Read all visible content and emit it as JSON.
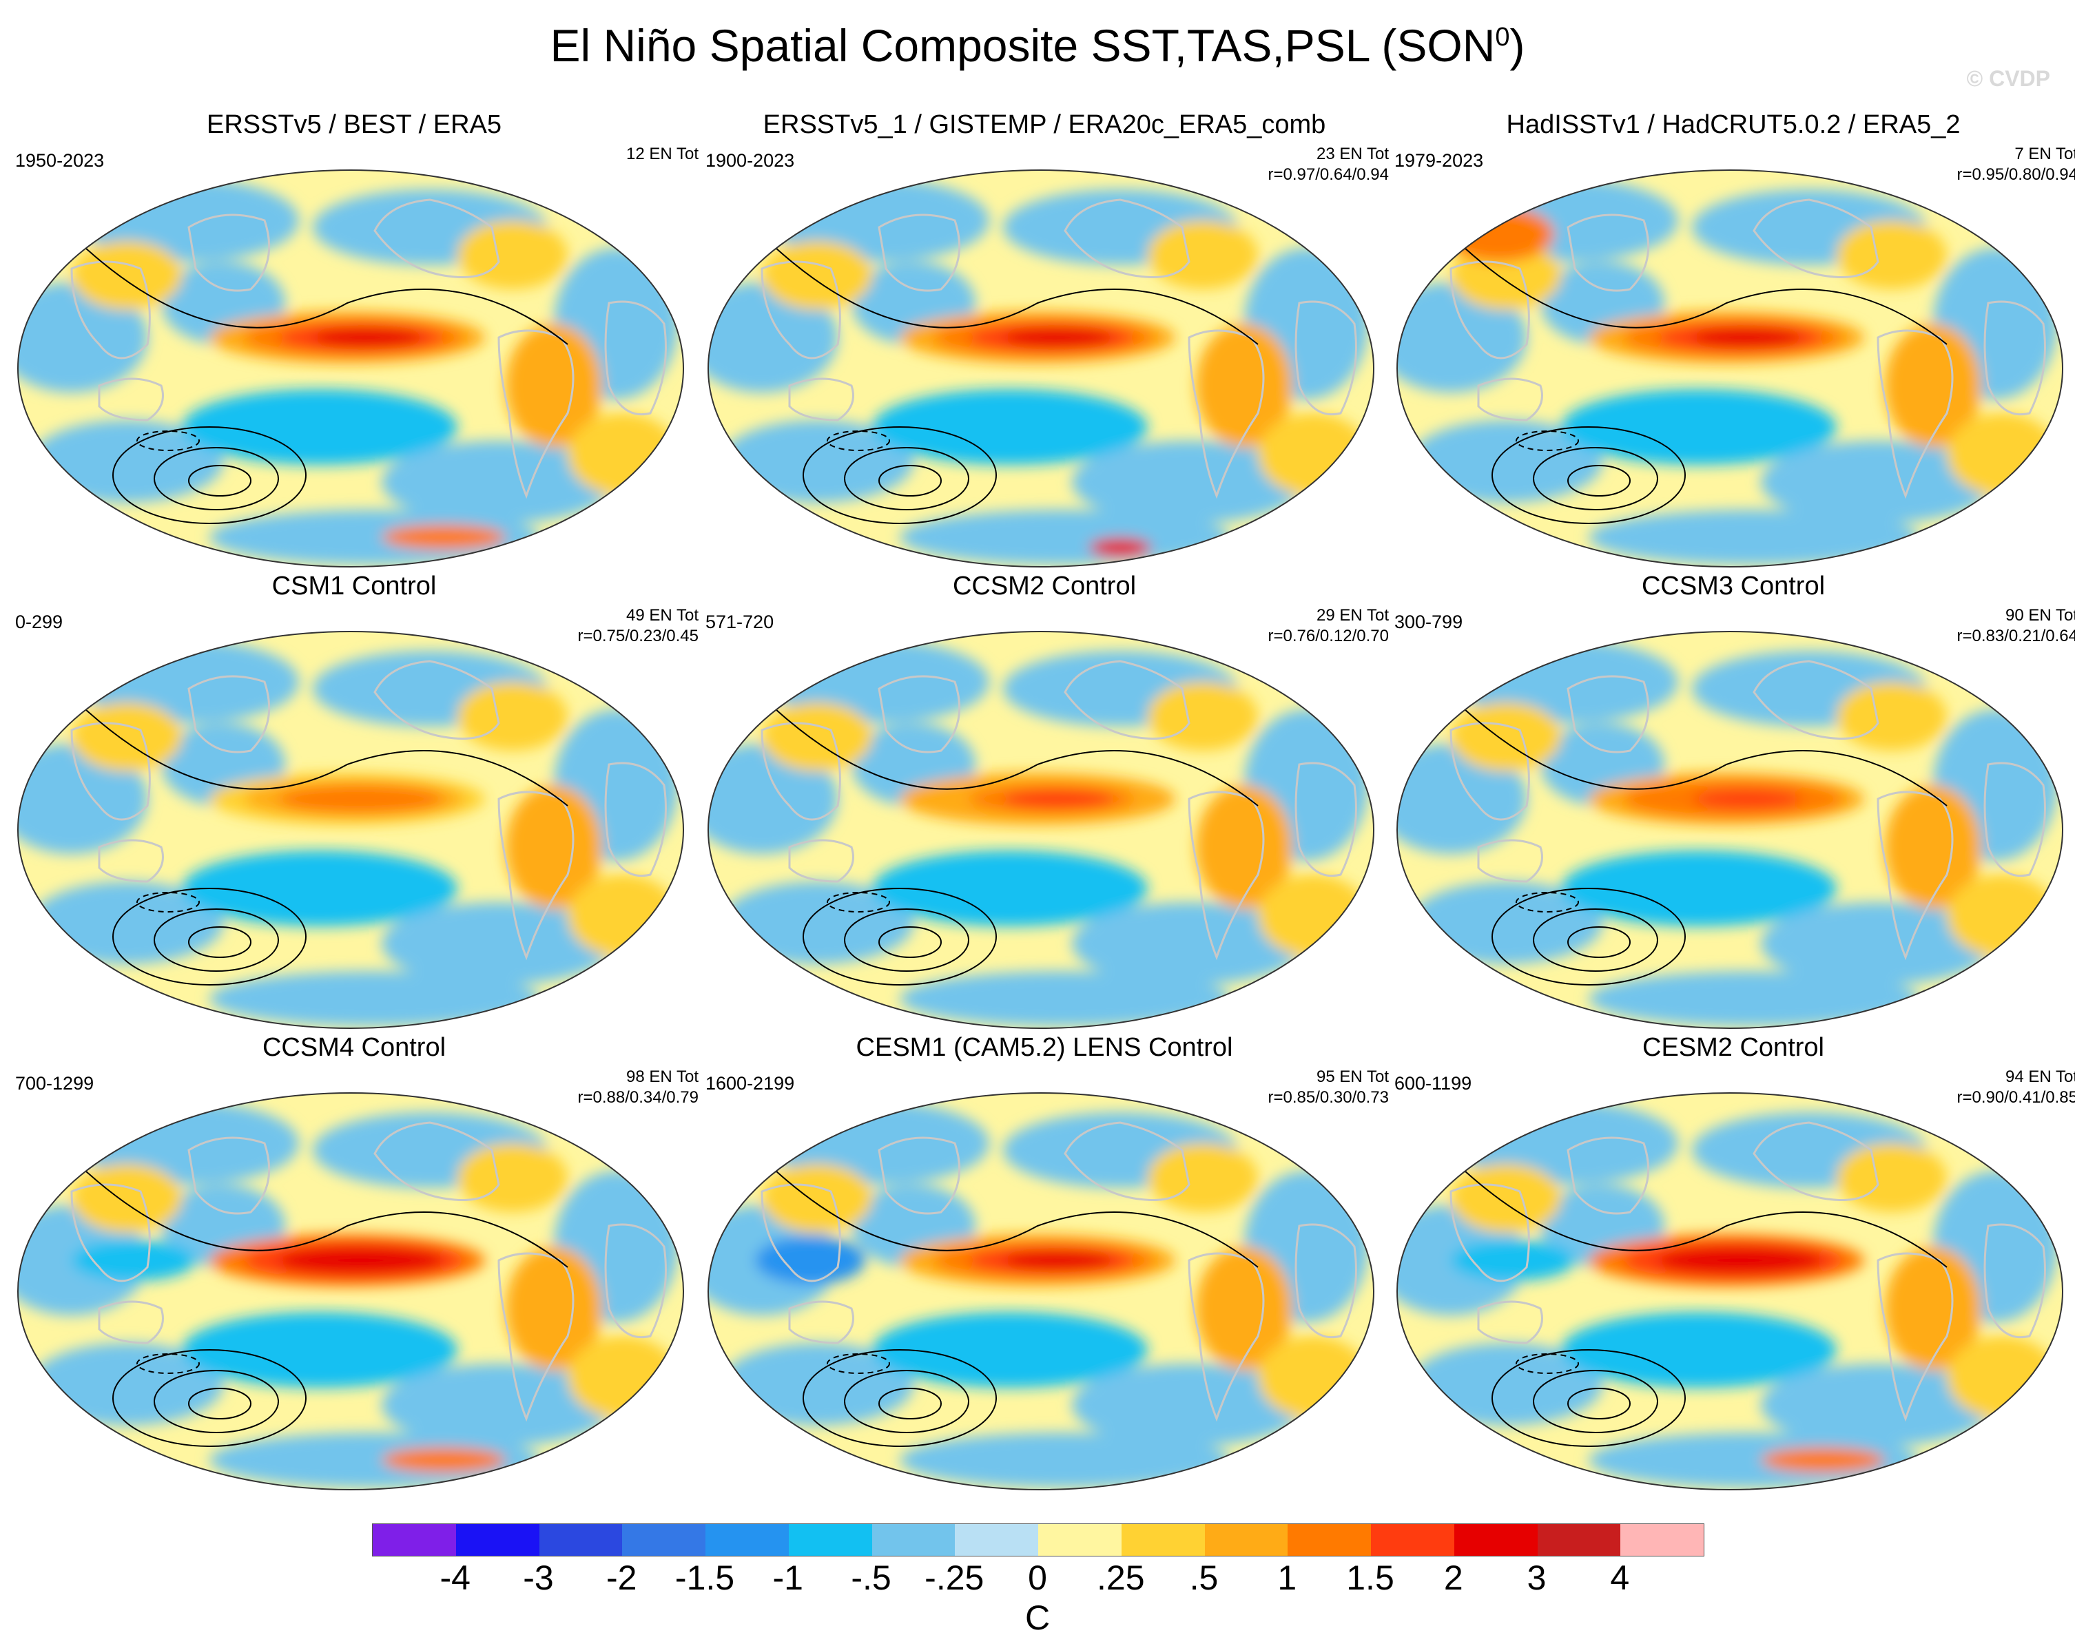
{
  "title": "El Niño Spatial Composite SST,TAS,PSL (SON",
  "title_sup": "0",
  "title_close": ")",
  "watermark": "© CVDP",
  "chart_data": [
    {
      "type": "heatmap",
      "title": "ERSSTv5 / BEST / ERA5",
      "period": "1950-2023",
      "events": "12 EN Tot",
      "pattern_corr": "",
      "peak_anomaly": 2.2,
      "style": "obs1"
    },
    {
      "type": "heatmap",
      "title": "ERSSTv5_1 / GISTEMP / ERA20c_ERA5_comb",
      "period": "1900-2023",
      "events": "23 EN Tot",
      "pattern_corr": "r=0.97/0.64/0.94",
      "peak_anomaly": 2.0,
      "style": "obs2"
    },
    {
      "type": "heatmap",
      "title": "HadISSTv1 / HadCRUT5.0.2 / ERA5_2",
      "period": "1979-2023",
      "events": "7 EN Tot",
      "pattern_corr": "r=0.95/0.80/0.94",
      "peak_anomaly": 2.3,
      "style": "obs3"
    },
    {
      "type": "heatmap",
      "title": "CSM1 Control",
      "period": "0-299",
      "events": "49 EN Tot",
      "pattern_corr": "r=0.75/0.23/0.45",
      "peak_anomaly": 1.2,
      "style": "m1"
    },
    {
      "type": "heatmap",
      "title": "CCSM2 Control",
      "period": "571-720",
      "events": "29 EN Tot",
      "pattern_corr": "r=0.76/0.12/0.70",
      "peak_anomaly": 1.6,
      "style": "m2"
    },
    {
      "type": "heatmap",
      "title": "CCSM3 Control",
      "period": "300-799",
      "events": "90 EN Tot",
      "pattern_corr": "r=0.83/0.21/0.64",
      "peak_anomaly": 1.7,
      "style": "m3"
    },
    {
      "type": "heatmap",
      "title": "CCSM4 Control",
      "period": "700-1299",
      "events": "98 EN Tot",
      "pattern_corr": "r=0.88/0.34/0.79",
      "peak_anomaly": 2.6,
      "style": "m4"
    },
    {
      "type": "heatmap",
      "title": "CESM1 (CAM5.2) LENS Control",
      "period": "1600-2199",
      "events": "95 EN Tot",
      "pattern_corr": "r=0.85/0.30/0.73",
      "peak_anomaly": 2.2,
      "style": "m5"
    },
    {
      "type": "heatmap",
      "title": "CESM2 Control",
      "period": "600-1199",
      "events": "94 EN Tot",
      "pattern_corr": "r=0.90/0.41/0.85",
      "peak_anomaly": 2.5,
      "style": "m6"
    }
  ],
  "colorbar": {
    "levels": [
      "-4",
      "-3",
      "-2",
      "-1.5",
      "-1",
      "-.5",
      "-.25",
      "0",
      ".25",
      ".5",
      "1",
      "1.5",
      "2",
      "3",
      "4"
    ],
    "colors": [
      "#7f1fe8",
      "#1a12f5",
      "#2b48e0",
      "#3478e6",
      "#2593f0",
      "#12c0f2",
      "#72c4ec",
      "#b9e0f4",
      "#fff6a0",
      "#ffd233",
      "#ffab16",
      "#ff7a00",
      "#ff3c0f",
      "#e60000",
      "#c81e1e",
      "#ffb6b6"
    ],
    "unit": "C"
  }
}
